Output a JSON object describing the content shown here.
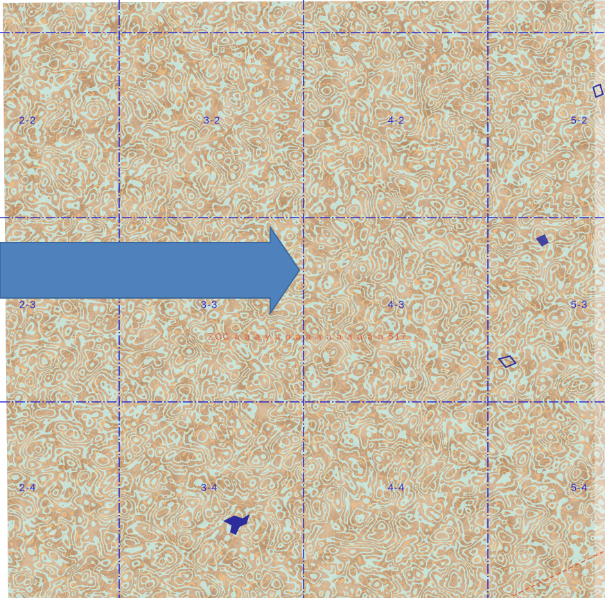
{
  "map": {
    "type": "topographic contour map with grid",
    "colors": {
      "terrain_base": "#b08660",
      "terrain_shadow": "#7b6a5c",
      "contour_cyan": "#8fe8e4",
      "contour_orange": "#e08a3c",
      "contour_yellow": "#f2e06a",
      "grid_line": "#2a2ad0",
      "label_color": "#2a2ad0",
      "arrow_fill": "#4f81bd",
      "arrow_stroke": "#3a6a9e",
      "annotation_red": "#e05030",
      "water_feature": "#2c2c9c"
    },
    "grid_labels": [
      {
        "id": "2-2",
        "text": "2-2"
      },
      {
        "id": "3-2",
        "text": "3-2"
      },
      {
        "id": "4-2",
        "text": "4-2"
      },
      {
        "id": "5-2",
        "text": "5-2"
      },
      {
        "id": "2-3",
        "text": "2-3"
      },
      {
        "id": "3-3",
        "text": "3-3"
      },
      {
        "id": "4-3",
        "text": "4-3"
      },
      {
        "id": "5-3",
        "text": "5-3"
      },
      {
        "id": "2-4",
        "text": "2-4"
      },
      {
        "id": "3-4",
        "text": "3-4"
      },
      {
        "id": "4-4",
        "text": "4-4"
      },
      {
        "id": "5-4",
        "text": "5-4"
      }
    ],
    "annotation": {
      "text": "ZCC a a a y a o a a a a a a a a a 517",
      "color": "#e05030"
    },
    "arrow": {
      "direction": "right",
      "icon": "arrow-right-icon"
    }
  }
}
